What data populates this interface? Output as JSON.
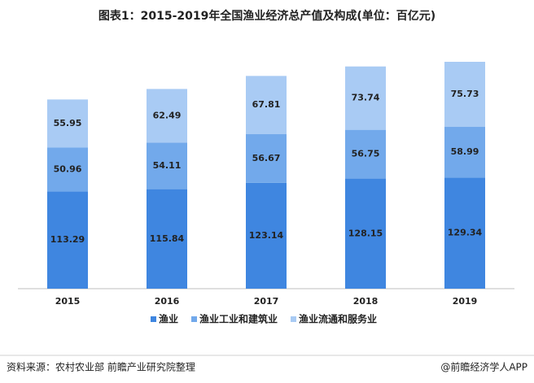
{
  "chart_data": {
    "type": "bar",
    "stacked": true,
    "title": "图表1：2015-2019年全国渔业经济总产值及构成(单位：百亿元)",
    "categories": [
      "2015",
      "2016",
      "2017",
      "2018",
      "2019"
    ],
    "series": [
      {
        "name": "渔业",
        "color": "#3f86e0",
        "values": [
          113.29,
          115.84,
          123.14,
          128.15,
          129.34
        ]
      },
      {
        "name": "渔业工业和建筑业",
        "color": "#72a9eb",
        "values": [
          50.96,
          54.11,
          56.67,
          56.75,
          58.99
        ]
      },
      {
        "name": "渔业流通和服务业",
        "color": "#a9cbf4",
        "values": [
          55.95,
          62.49,
          67.81,
          73.74,
          75.73
        ]
      }
    ]
  },
  "footer": {
    "source": "资料来源：农村农业部 前瞻产业研究院整理",
    "brand": "@前瞻经济学人APP"
  }
}
